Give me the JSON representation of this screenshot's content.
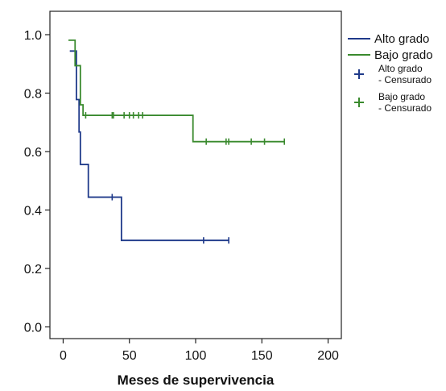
{
  "chart_data": {
    "type": "line",
    "title": "",
    "xlabel": "Meses de supervivencia",
    "ylabel": "",
    "xlim": [
      -10,
      210
    ],
    "ylim": [
      -0.04,
      1.08
    ],
    "x_ticks": [
      0,
      50,
      100,
      150,
      200
    ],
    "x_tick_labels": [
      "0",
      "50",
      "100",
      "150",
      "200"
    ],
    "y_ticks": [
      0.0,
      0.2,
      0.4,
      0.6,
      0.8,
      1.0
    ],
    "y_tick_labels": [
      "0.0",
      "0.2",
      "0.4",
      "0.6",
      "0.8",
      "1.0"
    ],
    "step": true,
    "grid": false,
    "legend_position": "right",
    "colors": {
      "alto": "#1f3a8a",
      "bajo": "#3a8a2e"
    },
    "series": [
      {
        "name": "Alto grado",
        "color": "#1f3a8a",
        "x": [
          5,
          10,
          12,
          13,
          19,
          44,
          125
        ],
        "y": [
          0.944,
          0.778,
          0.667,
          0.556,
          0.444,
          0.296,
          0.296
        ]
      },
      {
        "name": "Bajo grado",
        "color": "#3a8a2e",
        "x": [
          4,
          9,
          13,
          15,
          98,
          167
        ],
        "y": [
          0.981,
          0.894,
          0.76,
          0.724,
          0.634,
          0.634
        ]
      }
    ],
    "censored": [
      {
        "name": "Alto grado - Censurado",
        "color": "#1f3a8a",
        "x": [
          37,
          106,
          125
        ],
        "y": [
          0.444,
          0.296,
          0.296
        ]
      },
      {
        "name": "Bajo grado - Censurado",
        "color": "#3a8a2e",
        "x": [
          17,
          37,
          38,
          46,
          50,
          53,
          57,
          60,
          108,
          123,
          125,
          142,
          152,
          167
        ],
        "y": [
          0.724,
          0.724,
          0.724,
          0.724,
          0.724,
          0.724,
          0.724,
          0.724,
          0.634,
          0.634,
          0.634,
          0.634,
          0.634,
          0.634
        ]
      }
    ],
    "legend": [
      {
        "label": "Alto grado",
        "kind": "line",
        "color": "#1f3a8a"
      },
      {
        "label": "Bajo grado",
        "kind": "line",
        "color": "#3a8a2e"
      },
      {
        "label": "Alto grado",
        "label2": "- Censurado",
        "kind": "plus",
        "color": "#1f3a8a"
      },
      {
        "label": "Bajo grado",
        "label2": "- Censurado",
        "kind": "plus",
        "color": "#3a8a2e"
      }
    ]
  }
}
